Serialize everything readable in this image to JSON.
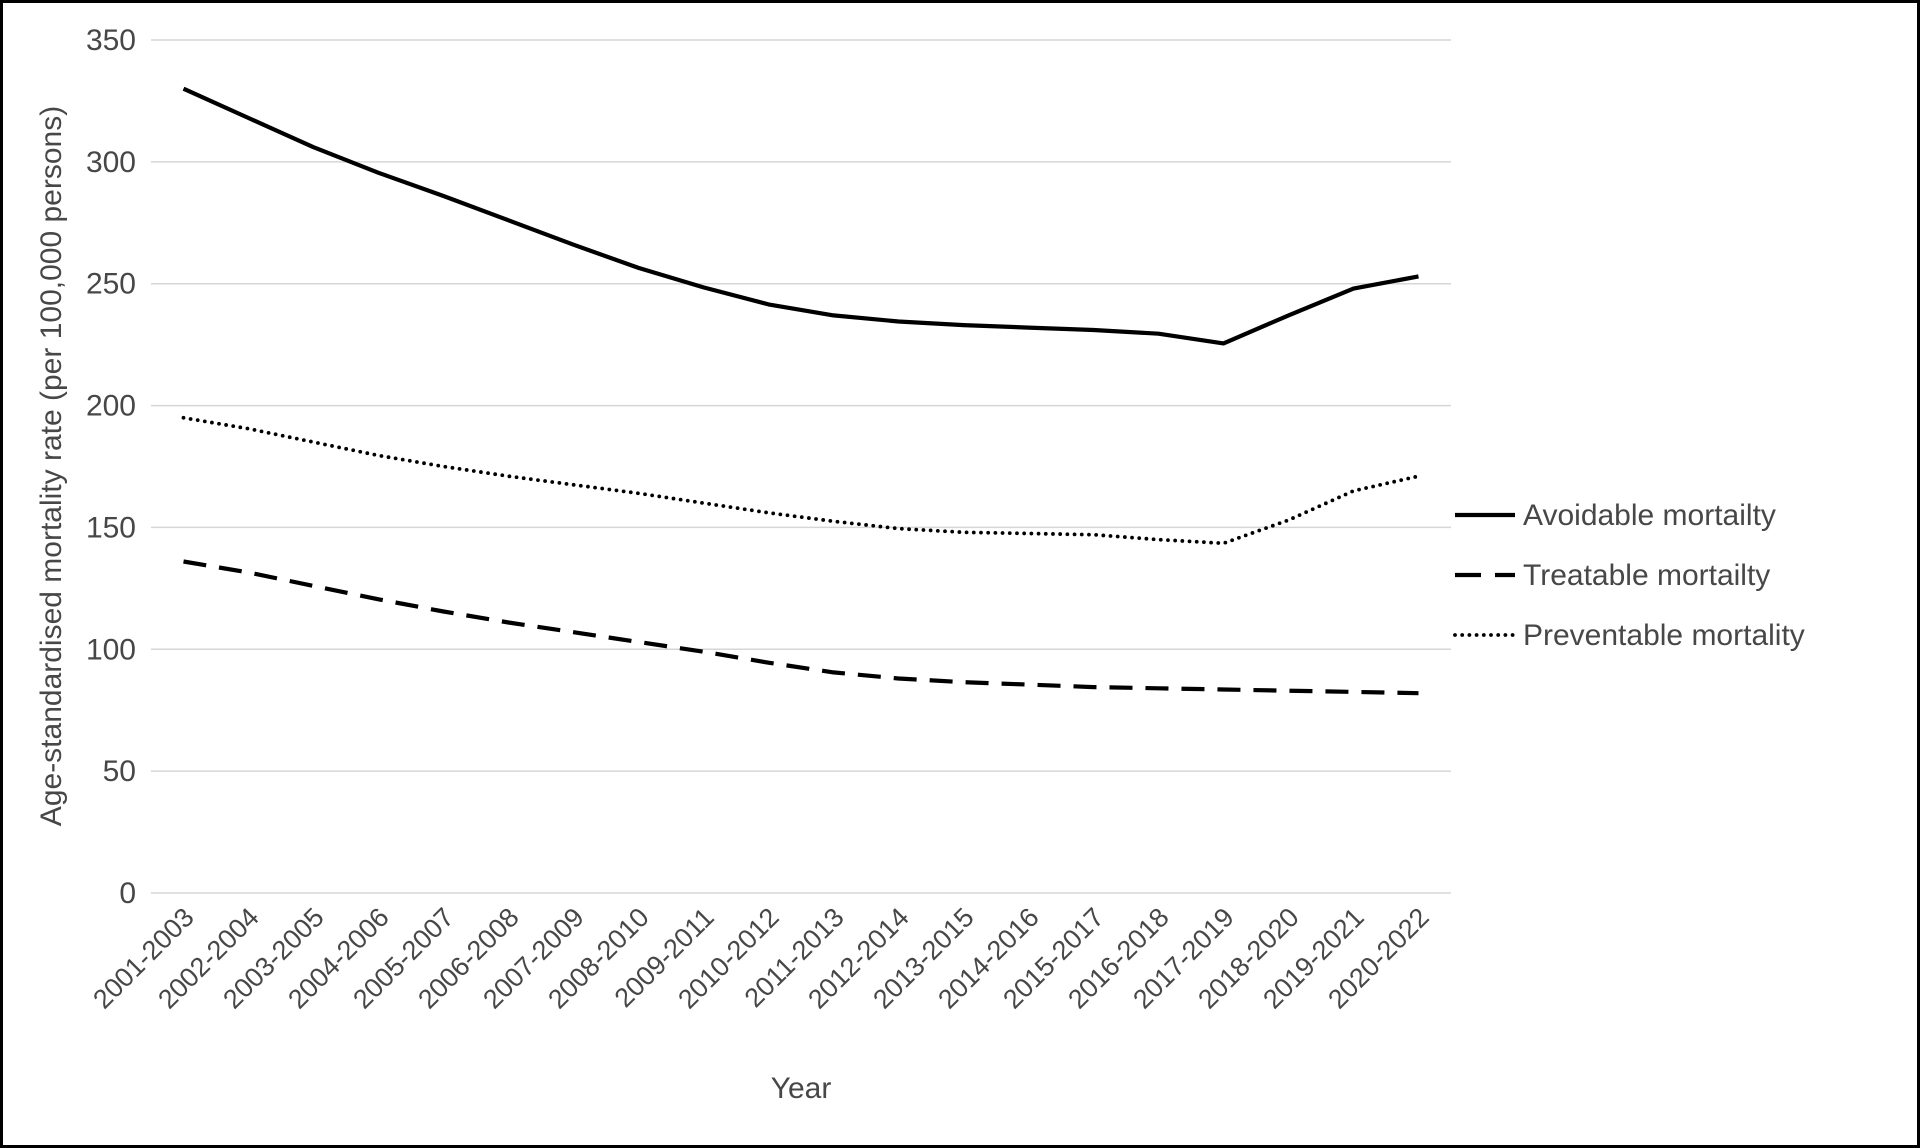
{
  "chart_data": {
    "type": "line",
    "title": "",
    "xlabel": "Year",
    "ylabel": "Age-standardised mortality rate (per 100,000 persons)",
    "ylim": [
      0,
      350
    ],
    "yticks": [
      0,
      50,
      100,
      150,
      200,
      250,
      300,
      350
    ],
    "grid": "horizontal-only",
    "legend_position": "right",
    "categories": [
      "2001-2003",
      "2002-2004",
      "2003-2005",
      "2004-2006",
      "2005-2007",
      "2006-2008",
      "2007-2009",
      "2008-2010",
      "2009-2011",
      "2010-2012",
      "2011-2013",
      "2012-2014",
      "2013-2015",
      "2014-2016",
      "2015-2017",
      "2016-2018",
      "2017-2019",
      "2018-2020",
      "2019-2021",
      "2020-2022"
    ],
    "series": [
      {
        "name": "Avoidable mortailty",
        "line_style": "solid",
        "values": [
          330,
          318,
          306,
          295.5,
          286,
          276,
          266,
          256.5,
          248.5,
          241.5,
          237,
          234.5,
          233,
          232,
          231,
          229.5,
          225.5,
          237,
          248,
          253
        ]
      },
      {
        "name": "Treatable mortailty",
        "line_style": "dashed",
        "values": [
          136,
          131.5,
          126,
          120.5,
          115.5,
          111,
          107,
          103,
          99,
          94.5,
          90.5,
          88,
          86.5,
          85.5,
          84.5,
          84,
          83.5,
          83,
          82.5,
          82
        ]
      },
      {
        "name": "Preventable mortality",
        "line_style": "dotted",
        "values": [
          195,
          190.5,
          185,
          179.5,
          175,
          171,
          167.5,
          164,
          160,
          156,
          152.5,
          149.5,
          148,
          147.5,
          147,
          145,
          143.5,
          153,
          165,
          171
        ]
      }
    ],
    "colors": {
      "line": "#000000",
      "grid": "#d6d6d6",
      "text": "#474747",
      "background": "#ffffff",
      "border": "#000000"
    }
  }
}
